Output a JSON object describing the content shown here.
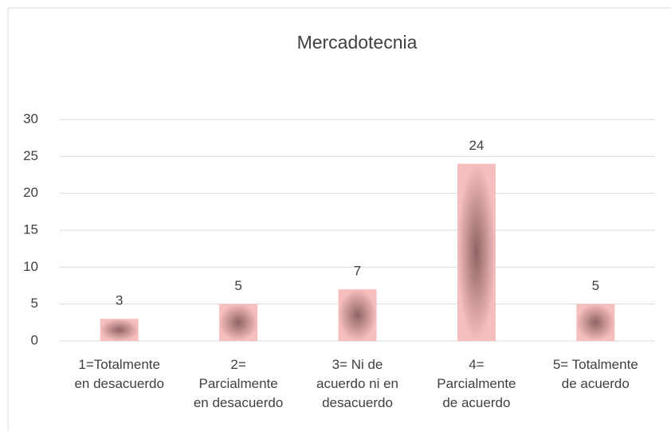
{
  "chart_data": {
    "type": "bar",
    "title": "Mercadotecnia",
    "categories": [
      "1=Totalmente\nen desacuerdo",
      "2=\nParcialmente\nen desacuerdo",
      "3= Ni de\nacuerdo ni en\ndesacuerdo",
      "4=\nParcialmente\nde acuerdo",
      "5= Totalmente\nde acuerdo"
    ],
    "values": [
      3,
      5,
      7,
      24,
      5
    ],
    "color": "#f4b6b6",
    "ylim": [
      0,
      30
    ],
    "yticks": [
      0,
      5,
      10,
      15,
      20,
      25,
      30
    ],
    "grid": true
  }
}
